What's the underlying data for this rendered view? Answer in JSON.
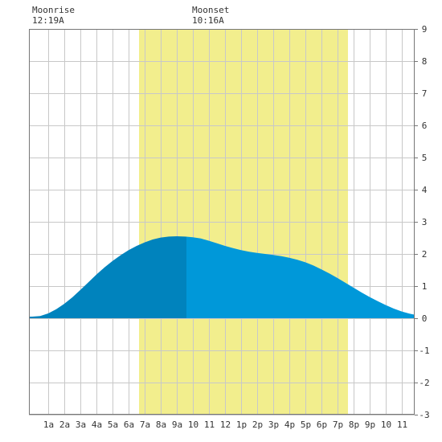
{
  "moon": {
    "rise_label": "Moonrise",
    "rise_time": "12:19A",
    "rise_hour": 0.32,
    "set_label": "Moonset",
    "set_time": "10:16A",
    "set_hour": 10.27
  },
  "chart_data": {
    "type": "area",
    "title": "",
    "xlabel": "",
    "ylabel": "",
    "xlim": [
      -0.2,
      23.8
    ],
    "ylim": [
      -3,
      9
    ],
    "grid": true,
    "x_ticks": [
      {
        "hour": 1,
        "label": "1a"
      },
      {
        "hour": 2,
        "label": "2a"
      },
      {
        "hour": 3,
        "label": "3a"
      },
      {
        "hour": 4,
        "label": "4a"
      },
      {
        "hour": 5,
        "label": "5a"
      },
      {
        "hour": 6,
        "label": "6a"
      },
      {
        "hour": 7,
        "label": "7a"
      },
      {
        "hour": 8,
        "label": "8a"
      },
      {
        "hour": 9,
        "label": "9a"
      },
      {
        "hour": 10,
        "label": "10"
      },
      {
        "hour": 11,
        "label": "11"
      },
      {
        "hour": 12,
        "label": "12"
      },
      {
        "hour": 13,
        "label": "1p"
      },
      {
        "hour": 14,
        "label": "2p"
      },
      {
        "hour": 15,
        "label": "3p"
      },
      {
        "hour": 16,
        "label": "4p"
      },
      {
        "hour": 17,
        "label": "5p"
      },
      {
        "hour": 18,
        "label": "6p"
      },
      {
        "hour": 19,
        "label": "7p"
      },
      {
        "hour": 20,
        "label": "8p"
      },
      {
        "hour": 21,
        "label": "9p"
      },
      {
        "hour": 22,
        "label": "10"
      },
      {
        "hour": 23,
        "label": "11"
      }
    ],
    "y_ticks": [
      -3,
      -2,
      -1,
      0,
      1,
      2,
      3,
      4,
      5,
      6,
      7,
      8,
      9
    ],
    "daylight": {
      "start_hour": 6.65,
      "end_hour": 19.65,
      "color": "#f2ee8d"
    },
    "split_hour": 9.6,
    "colors": {
      "past": "#0083bd",
      "future": "#0098d9",
      "grid": "#c8c8c8",
      "axis": "#777777"
    },
    "series": [
      {
        "x": [
          -0.2,
          0,
          0.5,
          1,
          1.5,
          2,
          2.5,
          3,
          3.5,
          4,
          4.5,
          5,
          5.5,
          6,
          6.5,
          7,
          7.5,
          8,
          8.5,
          9,
          9.5,
          10,
          10.5,
          11,
          11.5,
          12,
          12.5,
          13,
          13.5,
          14,
          14.5,
          15,
          15.5,
          16,
          16.5,
          17,
          17.5,
          18,
          18.5,
          19,
          19.5,
          20,
          20.5,
          21,
          21.5,
          22,
          22.5,
          23,
          23.5,
          23.8
        ],
        "y": [
          0.05,
          0.05,
          0.07,
          0.15,
          0.28,
          0.45,
          0.65,
          0.88,
          1.12,
          1.36,
          1.58,
          1.78,
          1.96,
          2.12,
          2.25,
          2.36,
          2.45,
          2.51,
          2.54,
          2.55,
          2.54,
          2.52,
          2.48,
          2.41,
          2.33,
          2.25,
          2.18,
          2.12,
          2.07,
          2.03,
          2.0,
          1.97,
          1.93,
          1.88,
          1.82,
          1.74,
          1.64,
          1.52,
          1.39,
          1.25,
          1.1,
          0.95,
          0.8,
          0.66,
          0.53,
          0.41,
          0.3,
          0.21,
          0.14,
          0.11
        ]
      }
    ]
  }
}
